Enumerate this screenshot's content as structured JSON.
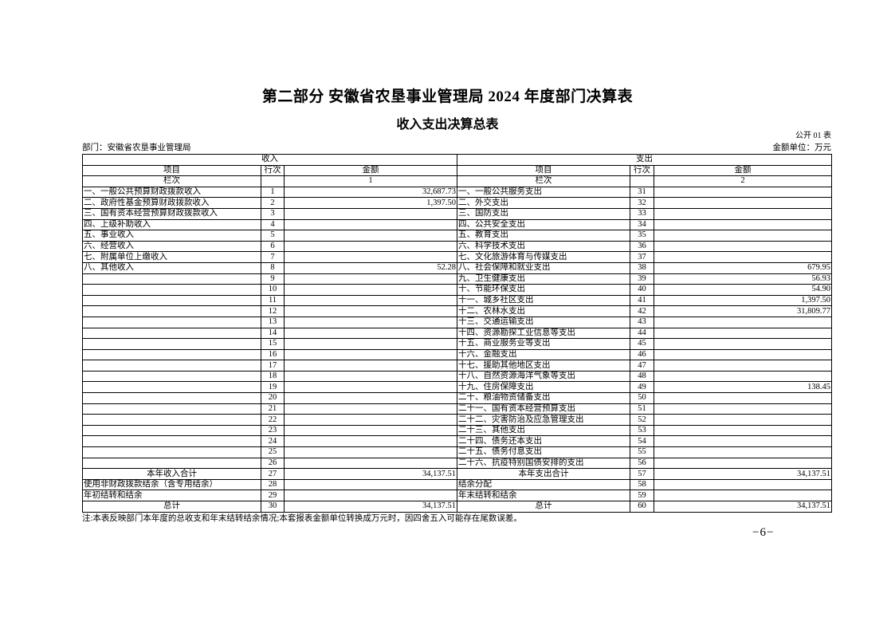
{
  "page": {
    "title": "第二部分  安徽省农垦事业管理局 2024 年度部门决算表",
    "subtitle": "收入支出决算总表",
    "table_code": "公开 01 表",
    "department": "部门：安徽省农垦事业管理局",
    "unit": "金额单位：万元",
    "note": "注:本表反映部门本年度的总收支和年末结转结余情况;本套报表金额单位转换成万元时，因四舍五入可能存在尾数误差。",
    "page_number": "−6−"
  },
  "table": {
    "income_header": "收入",
    "expense_header": "支出",
    "columns": {
      "item": "项目",
      "row_no": "行次",
      "amount": "金额"
    },
    "index_row": {
      "label": "栏次",
      "income_index": "1",
      "expense_index": "2"
    },
    "rows": [
      {
        "item": "一、一般公共预算财政拨款收入",
        "no": "1",
        "amount": "32,687.73",
        "item_r": "一、一般公共服务支出",
        "no_r": "31",
        "amount_r": "",
        "bold": false
      },
      {
        "item": "二、政府性基金预算财政拨款收入",
        "no": "2",
        "amount": "1,397.50",
        "item_r": "二、外交支出",
        "no_r": "32",
        "amount_r": "",
        "bold": false
      },
      {
        "item": "三、国有资本经营预算财政拨款收入",
        "no": "3",
        "amount": "",
        "item_r": "三、国防支出",
        "no_r": "33",
        "amount_r": "",
        "bold": false
      },
      {
        "item": "四、上级补助收入",
        "no": "4",
        "amount": "",
        "item_r": "四、公共安全支出",
        "no_r": "34",
        "amount_r": "",
        "bold": false
      },
      {
        "item": "五、事业收入",
        "no": "5",
        "amount": "",
        "item_r": "五、教育支出",
        "no_r": "35",
        "amount_r": "",
        "bold": false
      },
      {
        "item": "六、经营收入",
        "no": "6",
        "amount": "",
        "item_r": "六、科学技术支出",
        "no_r": "36",
        "amount_r": "",
        "bold": false
      },
      {
        "item": "七、附属单位上缴收入",
        "no": "7",
        "amount": "",
        "item_r": "七、文化旅游体育与传媒支出",
        "no_r": "37",
        "amount_r": "",
        "bold": false
      },
      {
        "item": "八、其他收入",
        "no": "8",
        "amount": "52.28",
        "item_r": "八、社会保障和就业支出",
        "no_r": "38",
        "amount_r": "679.95",
        "bold": false
      },
      {
        "item": "",
        "no": "9",
        "amount": "",
        "item_r": "九、卫生健康支出",
        "no_r": "39",
        "amount_r": "56.93",
        "bold": false
      },
      {
        "item": "",
        "no": "10",
        "amount": "",
        "item_r": "十、节能环保支出",
        "no_r": "40",
        "amount_r": "54.90",
        "bold": false
      },
      {
        "item": "",
        "no": "11",
        "amount": "",
        "item_r": "十一、城乡社区支出",
        "no_r": "41",
        "amount_r": "1,397.50",
        "bold": false
      },
      {
        "item": "",
        "no": "12",
        "amount": "",
        "item_r": "十二、农林水支出",
        "no_r": "42",
        "amount_r": "31,809.77",
        "bold": false
      },
      {
        "item": "",
        "no": "13",
        "amount": "",
        "item_r": "十三、交通运输支出",
        "no_r": "43",
        "amount_r": "",
        "bold": false
      },
      {
        "item": "",
        "no": "14",
        "amount": "",
        "item_r": "十四、资源勘探工业信息等支出",
        "no_r": "44",
        "amount_r": "",
        "bold": false
      },
      {
        "item": "",
        "no": "15",
        "amount": "",
        "item_r": "十五、商业服务业等支出",
        "no_r": "45",
        "amount_r": "",
        "bold": false
      },
      {
        "item": "",
        "no": "16",
        "amount": "",
        "item_r": "十六、金融支出",
        "no_r": "46",
        "amount_r": "",
        "bold": false
      },
      {
        "item": "",
        "no": "17",
        "amount": "",
        "item_r": "十七、援助其他地区支出",
        "no_r": "47",
        "amount_r": "",
        "bold": false
      },
      {
        "item": "",
        "no": "18",
        "amount": "",
        "item_r": "十八、自然资源海洋气象等支出",
        "no_r": "48",
        "amount_r": "",
        "bold": false
      },
      {
        "item": "",
        "no": "19",
        "amount": "",
        "item_r": "十九、住房保障支出",
        "no_r": "49",
        "amount_r": "138.45",
        "bold": false
      },
      {
        "item": "",
        "no": "20",
        "amount": "",
        "item_r": "二十、粮油物资储备支出",
        "no_r": "50",
        "amount_r": "",
        "bold": false
      },
      {
        "item": "",
        "no": "21",
        "amount": "",
        "item_r": "二十一、国有资本经营预算支出",
        "no_r": "51",
        "amount_r": "",
        "bold": false
      },
      {
        "item": "",
        "no": "22",
        "amount": "",
        "item_r": "二十二、灾害防治及应急管理支出",
        "no_r": "52",
        "amount_r": "",
        "bold": false
      },
      {
        "item": "",
        "no": "23",
        "amount": "",
        "item_r": "二十三、其他支出",
        "no_r": "53",
        "amount_r": "",
        "bold": false
      },
      {
        "item": "",
        "no": "24",
        "amount": "",
        "item_r": "二十四、债务还本支出",
        "no_r": "54",
        "amount_r": "",
        "bold": false
      },
      {
        "item": "",
        "no": "25",
        "amount": "",
        "item_r": "二十五、债务付息支出",
        "no_r": "55",
        "amount_r": "",
        "bold": false
      },
      {
        "item": "",
        "no": "26",
        "amount": "",
        "item_r": "二十六、抗疫特别国债安排的支出",
        "no_r": "56",
        "amount_r": "",
        "bold": false
      },
      {
        "item": "本年收入合计",
        "no": "27",
        "amount": "34,137.51",
        "item_r": "本年支出合计",
        "no_r": "57",
        "amount_r": "34,137.51",
        "bold": true
      },
      {
        "item": "使用非财政拨款结余（含专用结余）",
        "no": "28",
        "amount": "",
        "item_r": "结余分配",
        "no_r": "58",
        "amount_r": "",
        "bold": false
      },
      {
        "item": "年初结转和结余",
        "no": "29",
        "amount": "",
        "item_r": "年末结转和结余",
        "no_r": "59",
        "amount_r": "",
        "bold": false
      },
      {
        "item": "总计",
        "no": "30",
        "amount": "34,137.51",
        "item_r": "总计",
        "no_r": "60",
        "amount_r": "34,137.51",
        "bold": true
      }
    ]
  }
}
